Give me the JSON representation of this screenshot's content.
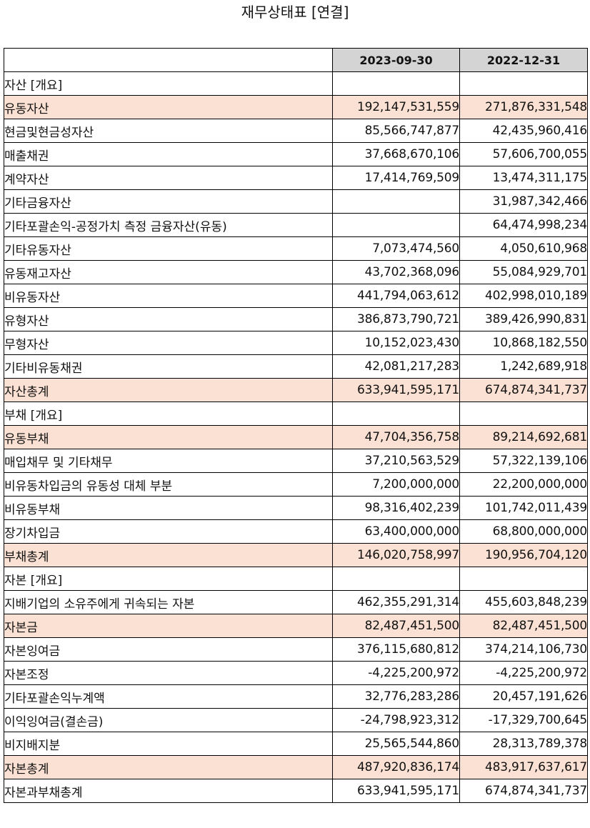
{
  "title": "재무상태표 [연결]",
  "columns": [
    "2023-09-30",
    "2022-12-31"
  ],
  "rows": [
    {
      "label": "자산 [개요]",
      "level": 0,
      "highlight": false,
      "v1": "",
      "v2": ""
    },
    {
      "label": "유동자산",
      "level": 1,
      "highlight": true,
      "v1": "192,147,531,559",
      "v2": "271,876,331,548"
    },
    {
      "label": "현금및현금성자산",
      "level": 2,
      "highlight": false,
      "v1": "85,566,747,877",
      "v2": "42,435,960,416"
    },
    {
      "label": "매출채권",
      "level": 2,
      "highlight": false,
      "v1": "37,668,670,106",
      "v2": "57,606,700,055"
    },
    {
      "label": "계약자산",
      "level": 2,
      "highlight": false,
      "v1": "17,414,769,509",
      "v2": "13,474,311,175"
    },
    {
      "label": "기타금융자산",
      "level": 2,
      "highlight": false,
      "v1": "",
      "v2": "31,987,342,466"
    },
    {
      "label": "기타포괄손익-공정가치 측정 금융자산(유동)",
      "level": 2,
      "highlight": false,
      "v1": "",
      "v2": "64,474,998,234"
    },
    {
      "label": "기타유동자산",
      "level": 2,
      "highlight": false,
      "v1": "7,073,474,560",
      "v2": "4,050,610,968"
    },
    {
      "label": "유동재고자산",
      "level": 2,
      "highlight": false,
      "v1": "43,702,368,096",
      "v2": "55,084,929,701"
    },
    {
      "label": "비유동자산",
      "level": 1,
      "highlight": false,
      "v1": "441,794,063,612",
      "v2": "402,998,010,189"
    },
    {
      "label": "유형자산",
      "level": 2,
      "highlight": false,
      "v1": "386,873,790,721",
      "v2": "389,426,990,831"
    },
    {
      "label": "무형자산",
      "level": 2,
      "highlight": false,
      "v1": "10,152,023,430",
      "v2": "10,868,182,550"
    },
    {
      "label": "기타비유동채권",
      "level": 2,
      "highlight": false,
      "v1": "42,081,217,283",
      "v2": "1,242,689,918"
    },
    {
      "label": "자산총계",
      "level": 1,
      "highlight": true,
      "v1": "633,941,595,171",
      "v2": "674,874,341,737"
    },
    {
      "label": "부채 [개요]",
      "level": 0,
      "highlight": false,
      "v1": "",
      "v2": ""
    },
    {
      "label": "유동부채",
      "level": 1,
      "highlight": true,
      "v1": "47,704,356,758",
      "v2": "89,214,692,681"
    },
    {
      "label": "매입채무 및 기타채무",
      "level": 2,
      "highlight": false,
      "v1": "37,210,563,529",
      "v2": "57,322,139,106"
    },
    {
      "label": "비유동차입금의 유동성 대체 부분",
      "level": 2,
      "highlight": false,
      "v1": "7,200,000,000",
      "v2": "22,200,000,000"
    },
    {
      "label": "비유동부채",
      "level": 1,
      "highlight": false,
      "v1": "98,316,402,239",
      "v2": "101,742,011,439"
    },
    {
      "label": "장기차입금",
      "level": 2,
      "highlight": false,
      "v1": "63,400,000,000",
      "v2": "68,800,000,000"
    },
    {
      "label": "부채총계",
      "level": 1,
      "highlight": true,
      "v1": "146,020,758,997",
      "v2": "190,956,704,120"
    },
    {
      "label": "자본 [개요]",
      "level": 0,
      "highlight": false,
      "v1": "",
      "v2": ""
    },
    {
      "label": "지배기업의 소유주에게 귀속되는 자본",
      "level": 1,
      "highlight": false,
      "v1": "462,355,291,314",
      "v2": "455,603,848,239"
    },
    {
      "label": "자본금",
      "level": 2,
      "highlight": true,
      "v1": "82,487,451,500",
      "v2": "82,487,451,500"
    },
    {
      "label": "자본잉여금",
      "level": 2,
      "highlight": false,
      "v1": "376,115,680,812",
      "v2": "374,214,106,730"
    },
    {
      "label": "자본조정",
      "level": 2,
      "highlight": false,
      "v1": "-4,225,200,972",
      "v2": "-4,225,200,972"
    },
    {
      "label": "기타포괄손익누계액",
      "level": 2,
      "highlight": false,
      "v1": "32,776,283,286",
      "v2": "20,457,191,626"
    },
    {
      "label": "이익잉여금(결손금)",
      "level": 2,
      "highlight": false,
      "v1": "-24,798,923,312",
      "v2": "-17,329,700,645"
    },
    {
      "label": "비지배지분",
      "level": 1,
      "highlight": false,
      "v1": "25,565,544,860",
      "v2": "28,313,789,378"
    },
    {
      "label": "자본총계",
      "level": 1,
      "highlight": true,
      "v1": "487,920,836,174",
      "v2": "483,917,637,617"
    },
    {
      "label": "자본과부채총계",
      "level": 0,
      "highlight": false,
      "v1": "633,941,595,171",
      "v2": "674,874,341,737"
    }
  ],
  "colors": {
    "header_bg": "#d4d4d4",
    "highlight_bg": "#fbe1d3",
    "border": "#000000"
  }
}
